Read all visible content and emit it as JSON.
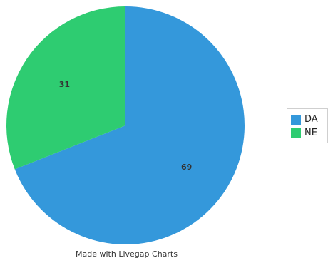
{
  "chart_data": {
    "type": "pie",
    "categories": [
      "DA",
      "NE"
    ],
    "values": [
      69,
      31
    ],
    "colors": [
      "#3498db",
      "#2ecc71"
    ],
    "data_labels": [
      "69",
      "31"
    ],
    "legend": {
      "entries": [
        "DA",
        "NE"
      ],
      "placement": "right"
    }
  },
  "footer": {
    "text": "Made with Livegap Charts"
  }
}
